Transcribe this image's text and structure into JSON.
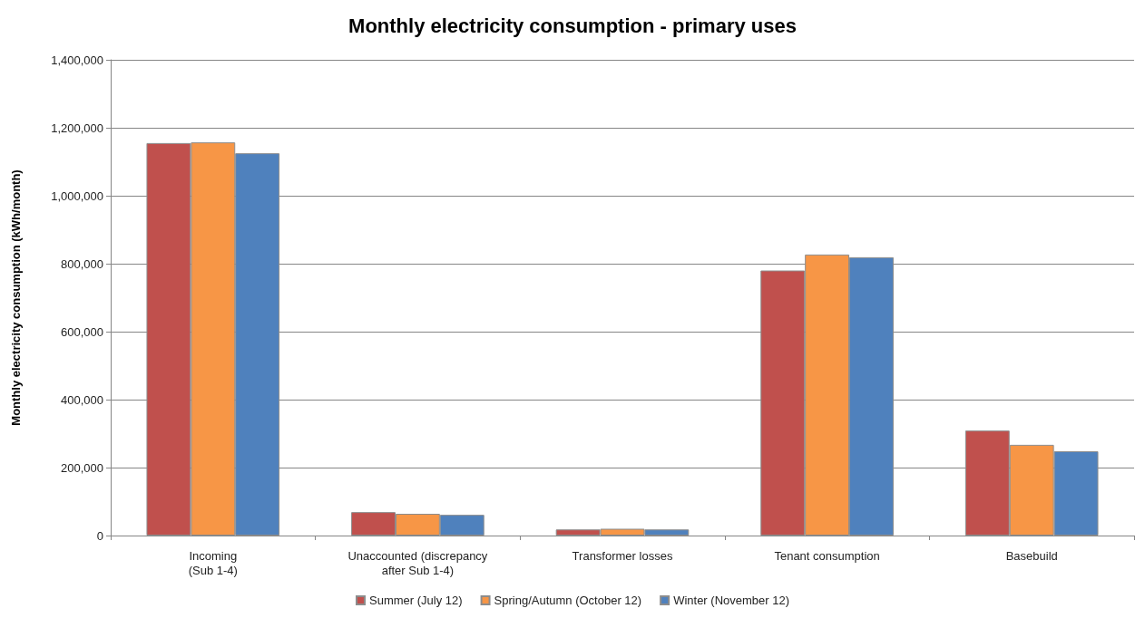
{
  "chart_data": {
    "type": "bar",
    "title": "Monthly electricity consumption - primary uses",
    "ylabel": "Monthly electricity consumption (kWh/month)",
    "categories": [
      "Incoming\n(Sub 1-4)",
      "Unaccounted (discrepancy\nafter Sub 1-4)",
      "Transformer losses",
      "Tenant consumption",
      "Basebuild"
    ],
    "series": [
      {
        "name": "Summer (July 12)",
        "color": "#c0504d",
        "values": [
          1155000,
          69000,
          18000,
          780000,
          309000
        ]
      },
      {
        "name": "Spring/Autumn (October 12)",
        "color": "#f79646",
        "values": [
          1157000,
          64000,
          20000,
          827000,
          267000
        ]
      },
      {
        "name": "Winter (November 12)",
        "color": "#4f81bd",
        "values": [
          1125000,
          61000,
          18000,
          819000,
          248000
        ]
      }
    ],
    "ylim": [
      0,
      1400000
    ],
    "yticks": [
      {
        "value": 0,
        "label": "0"
      },
      {
        "value": 200000,
        "label": "200,000"
      },
      {
        "value": 400000,
        "label": "400,000"
      },
      {
        "value": 600000,
        "label": "600,000"
      },
      {
        "value": 800000,
        "label": "800,000"
      },
      {
        "value": 1000000,
        "label": "1,000,000"
      },
      {
        "value": 1200000,
        "label": "1,200,000"
      },
      {
        "value": 1400000,
        "label": "1,400,000"
      }
    ],
    "grid": "y",
    "legend": "bottom"
  }
}
